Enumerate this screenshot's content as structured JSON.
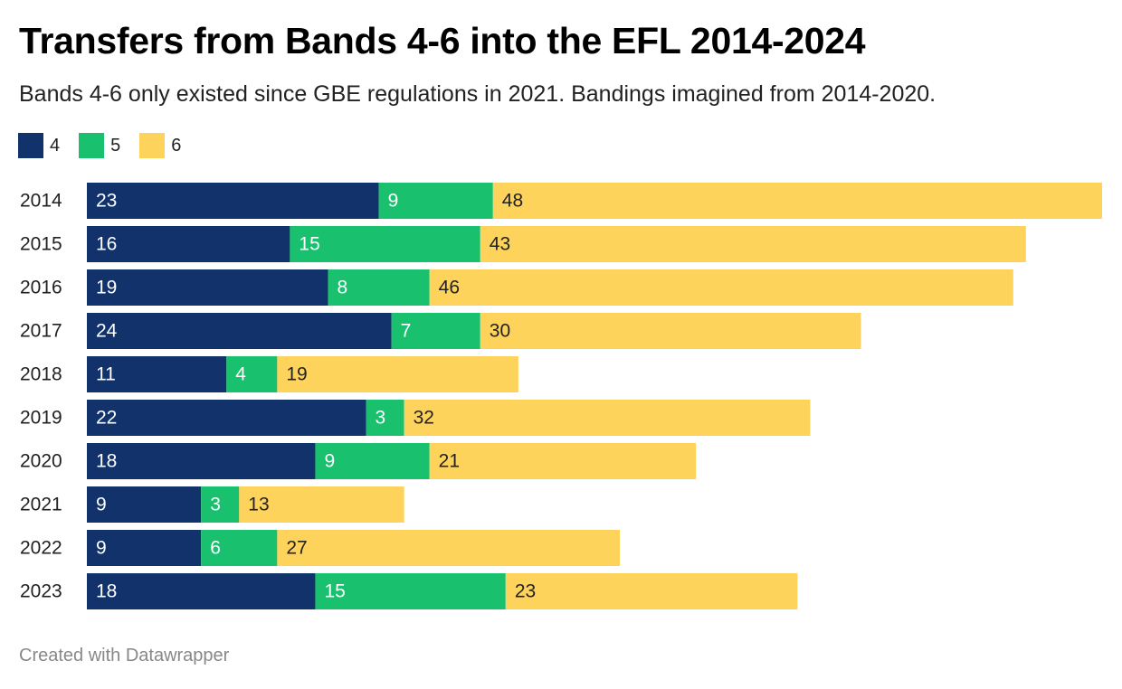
{
  "header": {
    "title": "Transfers from Bands 4-6 into the EFL 2014-2024",
    "subtitle": "Bands 4-6 only existed since GBE regulations in 2021. Bandings imagined from 2014-2020."
  },
  "footer": {
    "credit": "Created with Datawrapper"
  },
  "chart_data": {
    "type": "bar",
    "orientation": "horizontal",
    "stacked": true,
    "categories": [
      "2014",
      "2015",
      "2016",
      "2017",
      "2018",
      "2019",
      "2020",
      "2021",
      "2022",
      "2023"
    ],
    "series": [
      {
        "name": "4",
        "color": "#12326b",
        "label_color": "#ffffff",
        "values": [
          23,
          16,
          19,
          24,
          11,
          22,
          18,
          9,
          9,
          18
        ]
      },
      {
        "name": "5",
        "color": "#19c16f",
        "label_color": "#ffffff",
        "values": [
          9,
          15,
          8,
          7,
          4,
          3,
          9,
          3,
          6,
          15
        ]
      },
      {
        "name": "6",
        "color": "#fed35c",
        "label_color": "#222222",
        "values": [
          48,
          43,
          46,
          30,
          19,
          32,
          21,
          13,
          27,
          23
        ]
      }
    ],
    "xlim": [
      0,
      80
    ],
    "legend_position": "top-left",
    "grid": false,
    "data_labels": true
  }
}
